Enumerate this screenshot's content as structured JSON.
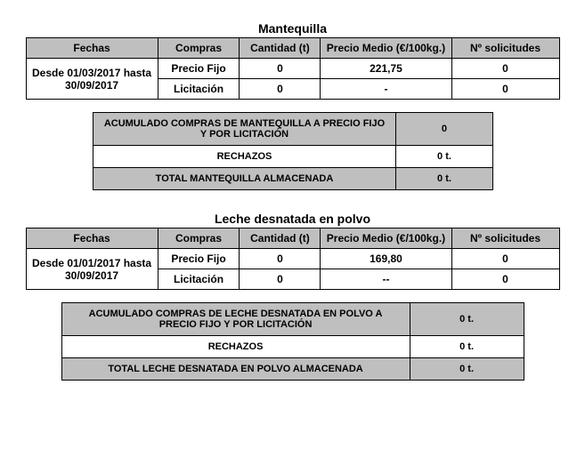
{
  "mantequilla": {
    "title": "Mantequilla",
    "headers": {
      "fechas": "Fechas",
      "compras": "Compras",
      "cantidad": "Cantidad (t)",
      "precio": "Precio Medio (€/100kg.)",
      "solicitudes": "Nº solicitudes"
    },
    "fechas": "Desde 01/03/2017 hasta 30/09/2017",
    "rows": [
      {
        "compras": "Precio Fijo",
        "cantidad": "0",
        "precio": "221,75",
        "sol": "0"
      },
      {
        "compras": "Licitación",
        "cantidad": "0",
        "precio": "-",
        "sol": "0"
      }
    ],
    "summary": [
      {
        "label": "ACUMULADO COMPRAS DE MANTEQUILLA A PRECIO FIJO Y POR LICITACIÓN",
        "value": "0",
        "shade": true
      },
      {
        "label": "RECHAZOS",
        "value": "0 t.",
        "shade": false
      },
      {
        "label": "TOTAL MANTEQUILLA ALMACENADA",
        "value": "0 t.",
        "shade": true
      }
    ]
  },
  "leche": {
    "title": "Leche desnatada en polvo",
    "headers": {
      "fechas": "Fechas",
      "compras": "Compras",
      "cantidad": "Cantidad (t)",
      "precio": "Precio Medio (€/100kg.)",
      "solicitudes": "Nº solicitudes"
    },
    "fechas": "Desde 01/01/2017 hasta 30/09/2017",
    "rows": [
      {
        "compras": "Precio Fijo",
        "cantidad": "0",
        "precio": "169,80",
        "sol": "0"
      },
      {
        "compras": "Licitación",
        "cantidad": "0",
        "precio": "--",
        "sol": "0"
      }
    ],
    "summary": [
      {
        "label": "ACUMULADO COMPRAS DE LECHE DESNATADA EN POLVO A PRECIO FIJO Y POR LICITACIÓN",
        "value": "0 t.",
        "shade": true
      },
      {
        "label": "RECHAZOS",
        "value": "0 t.",
        "shade": false
      },
      {
        "label": "TOTAL LECHE DESNATADA EN POLVO ALMACENADA",
        "value": "0 t.",
        "shade": true
      }
    ]
  }
}
